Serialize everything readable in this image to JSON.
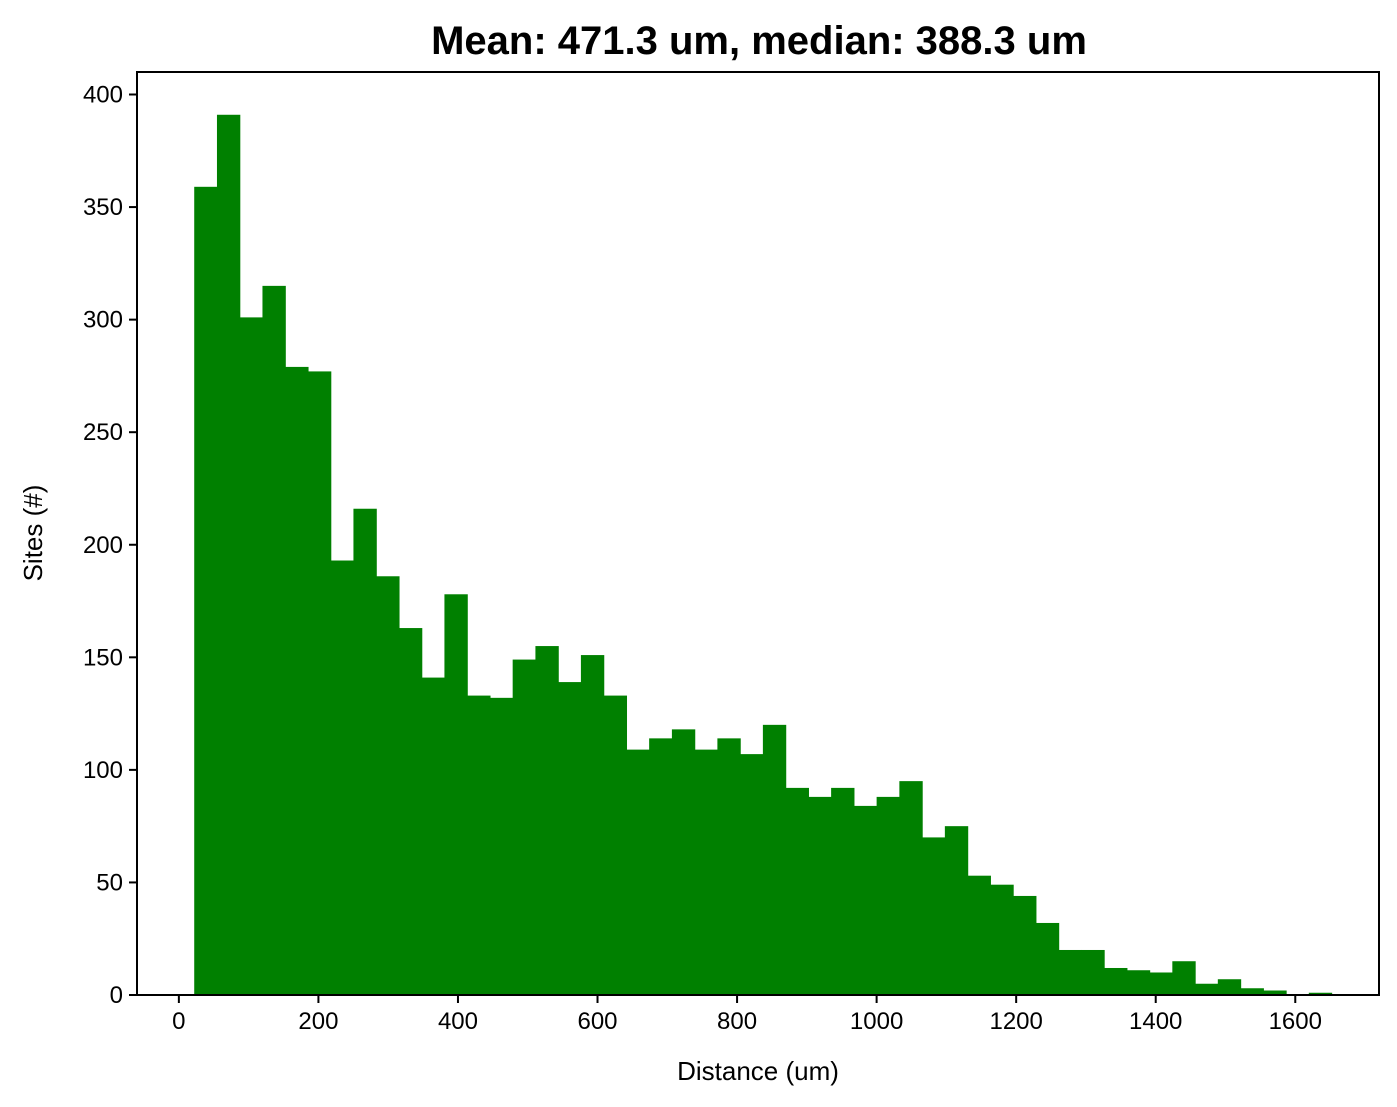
{
  "chart_data": {
    "type": "bar",
    "title": "Mean: 471.3 um, median: 388.3 um",
    "xlabel": "Distance (um)",
    "ylabel": "Sites (#)",
    "xlim": [
      -60,
      1720
    ],
    "ylim": [
      0,
      410
    ],
    "x_ticks": [
      0,
      200,
      400,
      600,
      800,
      1000,
      1200,
      1400,
      1600
    ],
    "y_ticks": [
      0,
      50,
      100,
      150,
      200,
      250,
      300,
      350,
      400
    ],
    "bin_start": 22,
    "bin_width": 32.6,
    "values": [
      359,
      391,
      301,
      315,
      279,
      277,
      193,
      216,
      186,
      163,
      141,
      178,
      133,
      132,
      149,
      155,
      139,
      151,
      133,
      109,
      114,
      118,
      109,
      114,
      107,
      120,
      92,
      88,
      92,
      84,
      88,
      95,
      70,
      75,
      53,
      49,
      44,
      32,
      20,
      20,
      12,
      11,
      10,
      15,
      5,
      7,
      3,
      2,
      0,
      1,
      0
    ],
    "bar_color": "#008000",
    "grid": false,
    "legend": "none"
  }
}
